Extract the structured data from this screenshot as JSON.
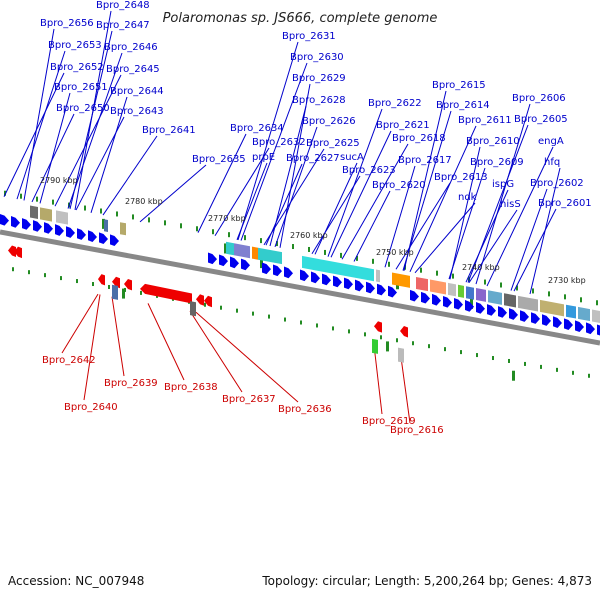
{
  "title": "Polaromonas sp. JS666, complete genome",
  "colors": {
    "forward_strand": "#0000ee",
    "reverse_strand": "#ee0000",
    "backbone": "#888888",
    "ticks": "#228b22",
    "label_forward": "#0000cc",
    "label_reverse": "#cc0000"
  },
  "ruler": [
    "2790 kbp",
    "2780 kbp",
    "2770 kbp",
    "2760 kbp",
    "2750 kbp",
    "2740 kbp",
    "2730 kbp"
  ],
  "forward_labels": [
    "Bpro_2656",
    "Bpro_2648",
    "Bpro_2647",
    "Bpro_2653",
    "Bpro_2646",
    "Bpro_2652",
    "Bpro_2645",
    "Bpro_2651",
    "Bpro_2644",
    "Bpro_2650",
    "Bpro_2643",
    "Bpro_2641",
    "Bpro_2631",
    "Bpro_2630",
    "Bpro_2629",
    "Bpro_2628",
    "Bpro_2626",
    "Bpro_2634",
    "Bpro_2632",
    "Bpro_2625",
    "Bpro_2635",
    "prpE",
    "Bpro_2627",
    "sucA",
    "Bpro_2623",
    "Bpro_2622",
    "Bpro_2621",
    "Bpro_2618",
    "Bpro_2617",
    "Bpro_2620",
    "Bpro_2615",
    "Bpro_2614",
    "Bpro_2613",
    "ndk",
    "Bpro_2611",
    "Bpro_2610",
    "Bpro_2609",
    "ispG",
    "hisS",
    "Bpro_2606",
    "Bpro_2605",
    "engA",
    "hfq",
    "Bpro_2602",
    "Bpro_2601"
  ],
  "reverse_labels": [
    "Bpro_2642",
    "Bpro_2640",
    "Bpro_2639",
    "Bpro_2638",
    "Bpro_2637",
    "Bpro_2636",
    "Bpro_2619",
    "Bpro_2616"
  ],
  "footer": {
    "accession": "Accession: NC_007948",
    "topology": "Topology: circular; Length: 5,200,264 bp; Genes: 4,873"
  }
}
